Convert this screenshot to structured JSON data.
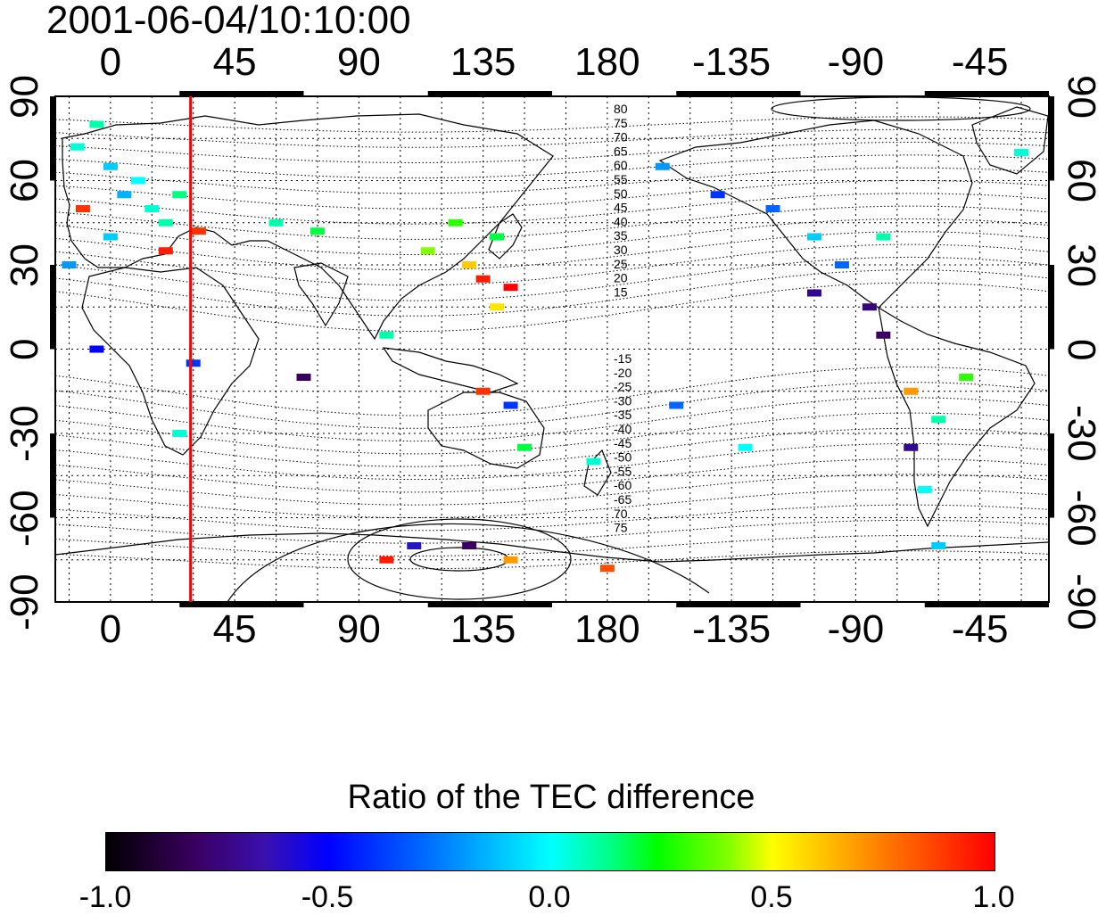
{
  "title": "2001-06-04/10:10:00",
  "top_axis_ticks": [
    "0",
    "45",
    "90",
    "135",
    "180",
    "-135",
    "-90",
    "-45"
  ],
  "bottom_axis_ticks": [
    "0",
    "45",
    "90",
    "135",
    "180",
    "-135",
    "-90",
    "-45"
  ],
  "left_axis_ticks": [
    "90",
    "60",
    "30",
    "0",
    "-30",
    "-60",
    "-90"
  ],
  "right_axis_ticks": [
    "90",
    "60",
    "30",
    "0",
    "-30",
    "-60",
    "-90"
  ],
  "contour_labels_north": [
    "80",
    "75",
    "70",
    "65",
    "60",
    "55",
    "50",
    "45",
    "40",
    "35",
    "30",
    "25",
    "20",
    "15"
  ],
  "contour_labels_south": [
    "-15",
    "-20",
    "-25",
    "-30",
    "-35",
    "-40",
    "-45",
    "-50",
    "-55",
    "-60",
    "-65",
    "70",
    "75"
  ],
  "colorbar": {
    "title": "Ratio of the TEC difference",
    "ticks": [
      "-1.0",
      "-0.5",
      "0.0",
      "0.5",
      "1.0"
    ],
    "min": -1.0,
    "max": 1.0
  },
  "colors": {
    "marker_line": "#ff0000",
    "frame": "#000000"
  },
  "map_data": {
    "projection": "equirectangular",
    "lon_range": [
      -20,
      340
    ],
    "lat_range": [
      -90,
      90
    ],
    "marker_longitude": 29,
    "observations": [
      {
        "lon": -12,
        "lat": 72,
        "value": 0.05
      },
      {
        "lon": -5,
        "lat": 80,
        "value": 0.1
      },
      {
        "lon": 0,
        "lat": 65,
        "value": -0.1
      },
      {
        "lon": 5,
        "lat": 55,
        "value": -0.15
      },
      {
        "lon": 10,
        "lat": 60,
        "value": 0.0
      },
      {
        "lon": 15,
        "lat": 50,
        "value": 0.05
      },
      {
        "lon": 20,
        "lat": 45,
        "value": 0.1
      },
      {
        "lon": 25,
        "lat": 55,
        "value": 0.15
      },
      {
        "lon": -10,
        "lat": 50,
        "value": 0.9
      },
      {
        "lon": 20,
        "lat": 35,
        "value": 0.95
      },
      {
        "lon": 32,
        "lat": 42,
        "value": 0.9
      },
      {
        "lon": 0,
        "lat": 40,
        "value": -0.1
      },
      {
        "lon": -15,
        "lat": 30,
        "value": -0.2
      },
      {
        "lon": 60,
        "lat": 45,
        "value": 0.1
      },
      {
        "lon": 75,
        "lat": 42,
        "value": 0.2
      },
      {
        "lon": 115,
        "lat": 35,
        "value": 0.4
      },
      {
        "lon": 130,
        "lat": 30,
        "value": 0.6
      },
      {
        "lon": 135,
        "lat": 25,
        "value": 0.95
      },
      {
        "lon": 140,
        "lat": 40,
        "value": 0.2
      },
      {
        "lon": 145,
        "lat": 22,
        "value": 1.0
      },
      {
        "lon": 125,
        "lat": 45,
        "value": 0.3
      },
      {
        "lon": 140,
        "lat": 15,
        "value": 0.55
      },
      {
        "lon": 100,
        "lat": 5,
        "value": 0.1
      },
      {
        "lon": 70,
        "lat": -10,
        "value": -0.8
      },
      {
        "lon": 25,
        "lat": -30,
        "value": 0.05
      },
      {
        "lon": 30,
        "lat": -5,
        "value": -0.4
      },
      {
        "lon": -5,
        "lat": 0,
        "value": -0.5
      },
      {
        "lon": 135,
        "lat": -15,
        "value": 0.9
      },
      {
        "lon": 145,
        "lat": -20,
        "value": -0.4
      },
      {
        "lon": 150,
        "lat": -35,
        "value": 0.2
      },
      {
        "lon": 175,
        "lat": -40,
        "value": 0.05
      },
      {
        "lon": 100,
        "lat": -75,
        "value": 0.95
      },
      {
        "lon": 110,
        "lat": -70,
        "value": -0.6
      },
      {
        "lon": 130,
        "lat": -70,
        "value": -0.8
      },
      {
        "lon": 145,
        "lat": -75,
        "value": 0.7
      },
      {
        "lon": 180,
        "lat": -78,
        "value": 0.85
      },
      {
        "lon": 200,
        "lat": 65,
        "value": -0.2
      },
      {
        "lon": 220,
        "lat": 55,
        "value": -0.4
      },
      {
        "lon": 240,
        "lat": 50,
        "value": -0.3
      },
      {
        "lon": 255,
        "lat": 40,
        "value": -0.1
      },
      {
        "lon": 265,
        "lat": 30,
        "value": -0.3
      },
      {
        "lon": 255,
        "lat": 20,
        "value": -0.7
      },
      {
        "lon": 275,
        "lat": 15,
        "value": -0.75
      },
      {
        "lon": 280,
        "lat": 5,
        "value": -0.8
      },
      {
        "lon": 290,
        "lat": -15,
        "value": 0.7
      },
      {
        "lon": 300,
        "lat": -25,
        "value": 0.1
      },
      {
        "lon": 290,
        "lat": -35,
        "value": -0.7
      },
      {
        "lon": 295,
        "lat": -50,
        "value": 0.0
      },
      {
        "lon": 310,
        "lat": -10,
        "value": 0.3
      },
      {
        "lon": 205,
        "lat": -20,
        "value": -0.3
      },
      {
        "lon": 230,
        "lat": -35,
        "value": 0.0
      },
      {
        "lon": 280,
        "lat": 40,
        "value": 0.1
      },
      {
        "lon": 330,
        "lat": 70,
        "value": 0.05
      },
      {
        "lon": 300,
        "lat": -70,
        "value": -0.1
      }
    ]
  }
}
